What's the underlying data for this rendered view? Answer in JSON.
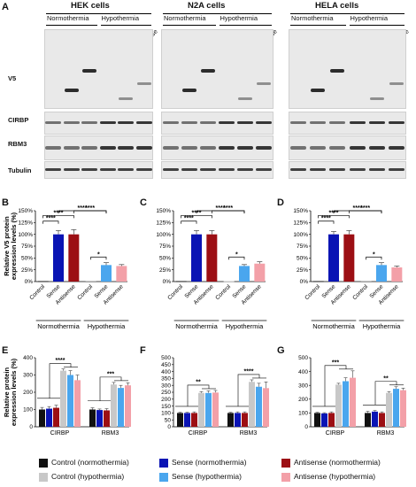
{
  "panels": {
    "A": "A",
    "B": "B",
    "C": "C",
    "D": "D",
    "E": "E",
    "F": "F",
    "G": "G"
  },
  "blots": {
    "cells": [
      "HEK cells",
      "N2A cells",
      "HELA cells"
    ],
    "conditions": [
      "Normothermia",
      "Hypothermia"
    ],
    "lanes": [
      "Control",
      "Sense",
      "Antisense",
      "Control",
      "Sense",
      "Antisense"
    ],
    "rows": [
      "V5",
      "CIRBP",
      "RBM3",
      "Tubulin"
    ]
  },
  "y_axis_v5": [
    "Relative V5 protein",
    "expression levels (%)"
  ],
  "y_axis_expr": [
    "Relative protein",
    "expression levels (%)"
  ],
  "legend": [
    {
      "label": "Control (normothermia)",
      "color": "#111111"
    },
    {
      "label": "Control (hypothermia)",
      "color": "#c8c8c8"
    },
    {
      "label": "Sense (normothermia)",
      "color": "#0a14b4"
    },
    {
      "label": "Sense (hypothermia)",
      "color": "#4aa6ee"
    },
    {
      "label": "Antisense (normothermia)",
      "color": "#9c0f14"
    },
    {
      "label": "Antisense (hypothermia)",
      "color": "#f3a0a8"
    }
  ],
  "chart_data": [
    {
      "panel": "B",
      "type": "bar",
      "categories": [
        "Control",
        "Sense",
        "Antisense",
        "Control",
        "Sense",
        "Antisense"
      ],
      "groups": [
        "Normothermia",
        "Hypothermia"
      ],
      "values": [
        1,
        100,
        100,
        2,
        35,
        33
      ],
      "errors": [
        0,
        8,
        10,
        0,
        5,
        3
      ],
      "ylim": [
        0,
        150
      ],
      "yticks": [
        0,
        25,
        50,
        75,
        100,
        125,
        150
      ],
      "ytick_labels": [
        "0%",
        "25%",
        "50%",
        "75%",
        "100%",
        "125%",
        "150%"
      ],
      "significance": [
        {
          "label": "****",
          "from": 0,
          "to": 1
        },
        {
          "label": "****",
          "from": 0,
          "to": 2
        },
        {
          "label": "****",
          "from": 2,
          "to": 4
        },
        {
          "label": "****",
          "from": 1,
          "to": 4
        },
        {
          "label": "*",
          "from": 3,
          "to": 4
        }
      ]
    },
    {
      "panel": "C",
      "type": "bar",
      "categories": [
        "Control",
        "Sense",
        "Antisense",
        "Control",
        "Sense",
        "Antisense"
      ],
      "groups": [
        "Normothermia",
        "Hypothermia"
      ],
      "values": [
        1,
        100,
        100,
        1,
        33,
        38
      ],
      "errors": [
        0,
        8,
        8,
        0,
        3,
        4
      ],
      "ylim": [
        0,
        150
      ],
      "yticks": [
        0,
        25,
        50,
        75,
        100,
        125,
        150
      ],
      "ytick_labels": [
        "0%",
        "25%",
        "50%",
        "75%",
        "100%",
        "125%",
        "150%"
      ],
      "significance": [
        {
          "label": "****",
          "from": 0,
          "to": 1
        },
        {
          "label": "****",
          "from": 0,
          "to": 2
        },
        {
          "label": "****",
          "from": 2,
          "to": 4
        },
        {
          "label": "****",
          "from": 1,
          "to": 4
        },
        {
          "label": "*",
          "from": 3,
          "to": 4
        }
      ]
    },
    {
      "panel": "D",
      "type": "bar",
      "categories": [
        "Control",
        "Sense",
        "Antisense",
        "Control",
        "Sense",
        "Antisense"
      ],
      "groups": [
        "Normothermia",
        "Hypothermia"
      ],
      "values": [
        1,
        100,
        100,
        2,
        35,
        30
      ],
      "errors": [
        0,
        6,
        8,
        0,
        5,
        3
      ],
      "ylim": [
        0,
        150
      ],
      "yticks": [
        0,
        25,
        50,
        75,
        100,
        125,
        150
      ],
      "ytick_labels": [
        "0%",
        "25%",
        "50%",
        "75%",
        "100%",
        "125%",
        "150%"
      ],
      "significance": [
        {
          "label": "****",
          "from": 0,
          "to": 1
        },
        {
          "label": "****",
          "from": 0,
          "to": 2
        },
        {
          "label": "****",
          "from": 2,
          "to": 4
        },
        {
          "label": "****",
          "from": 1,
          "to": 4
        },
        {
          "label": "*",
          "from": 3,
          "to": 4
        }
      ]
    },
    {
      "panel": "E",
      "type": "bar",
      "categories": [
        "CIRBP",
        "RBM3"
      ],
      "series": [
        {
          "name": "Control (normothermia)",
          "values": [
            100,
            100
          ],
          "errors": [
            12,
            10
          ]
        },
        {
          "name": "Sense (normothermia)",
          "values": [
            105,
            97
          ],
          "errors": [
            12,
            6
          ]
        },
        {
          "name": "Antisense (normothermia)",
          "values": [
            110,
            95
          ],
          "errors": [
            15,
            10
          ]
        },
        {
          "name": "Control (hypothermia)",
          "values": [
            325,
            245
          ],
          "errors": [
            10,
            12
          ]
        },
        {
          "name": "Sense (hypothermia)",
          "values": [
            300,
            225
          ],
          "errors": [
            25,
            15
          ]
        },
        {
          "name": "Antisense (hypothermia)",
          "values": [
            270,
            240
          ],
          "errors": [
            30,
            15
          ]
        }
      ],
      "ylim": [
        0,
        400
      ],
      "yticks": [
        0,
        100,
        200,
        300,
        400
      ],
      "ytick_labels": [
        "0",
        "100",
        "200",
        "300",
        "400"
      ],
      "significance": [
        {
          "label": "****",
          "category": 0
        },
        {
          "label": "***",
          "category": 1
        }
      ]
    },
    {
      "panel": "F",
      "type": "bar",
      "categories": [
        "CIRBP",
        "RBM3"
      ],
      "series": [
        {
          "name": "Control (normothermia)",
          "values": [
            100,
            100
          ],
          "errors": [
            5,
            5
          ]
        },
        {
          "name": "Sense (normothermia)",
          "values": [
            100,
            100
          ],
          "errors": [
            5,
            8
          ]
        },
        {
          "name": "Antisense (normothermia)",
          "values": [
            100,
            100
          ],
          "errors": [
            8,
            8
          ]
        },
        {
          "name": "Control (hypothermia)",
          "values": [
            245,
            325
          ],
          "errors": [
            10,
            15
          ]
        },
        {
          "name": "Sense (hypothermia)",
          "values": [
            245,
            290
          ],
          "errors": [
            15,
            25
          ]
        },
        {
          "name": "Antisense (hypothermia)",
          "values": [
            248,
            280
          ],
          "errors": [
            15,
            45
          ]
        }
      ],
      "ylim": [
        0,
        500
      ],
      "yticks": [
        0,
        50,
        100,
        150,
        200,
        250,
        300,
        350,
        400,
        450,
        500
      ],
      "ytick_labels": [
        "0",
        "50",
        "100",
        "150",
        "200",
        "250",
        "300",
        "350",
        "400",
        "450",
        "500"
      ],
      "significance": [
        {
          "label": "**",
          "category": 0
        },
        {
          "label": "****",
          "category": 1
        }
      ]
    },
    {
      "panel": "G",
      "type": "bar",
      "categories": [
        "CIRBP",
        "RBM3"
      ],
      "series": [
        {
          "name": "Control (normothermia)",
          "values": [
            100,
            100
          ],
          "errors": [
            5,
            12
          ]
        },
        {
          "name": "Sense (normothermia)",
          "values": [
            97,
            110
          ],
          "errors": [
            5,
            8
          ]
        },
        {
          "name": "Antisense (normothermia)",
          "values": [
            100,
            100
          ],
          "errors": [
            8,
            8
          ]
        },
        {
          "name": "Control (hypothermia)",
          "values": [
            305,
            245
          ],
          "errors": [
            10,
            10
          ]
        },
        {
          "name": "Sense (hypothermia)",
          "values": [
            330,
            275
          ],
          "errors": [
            25,
            15
          ]
        },
        {
          "name": "Antisense (hypothermia)",
          "values": [
            355,
            265
          ],
          "errors": [
            50,
            15
          ]
        }
      ],
      "ylim": [
        0,
        500
      ],
      "yticks": [
        0,
        100,
        200,
        300,
        400,
        500
      ],
      "ytick_labels": [
        "0",
        "100",
        "200",
        "300",
        "400",
        "500"
      ],
      "significance": [
        {
          "label": "***",
          "category": 0
        },
        {
          "label": "**",
          "category": 1
        }
      ]
    }
  ]
}
